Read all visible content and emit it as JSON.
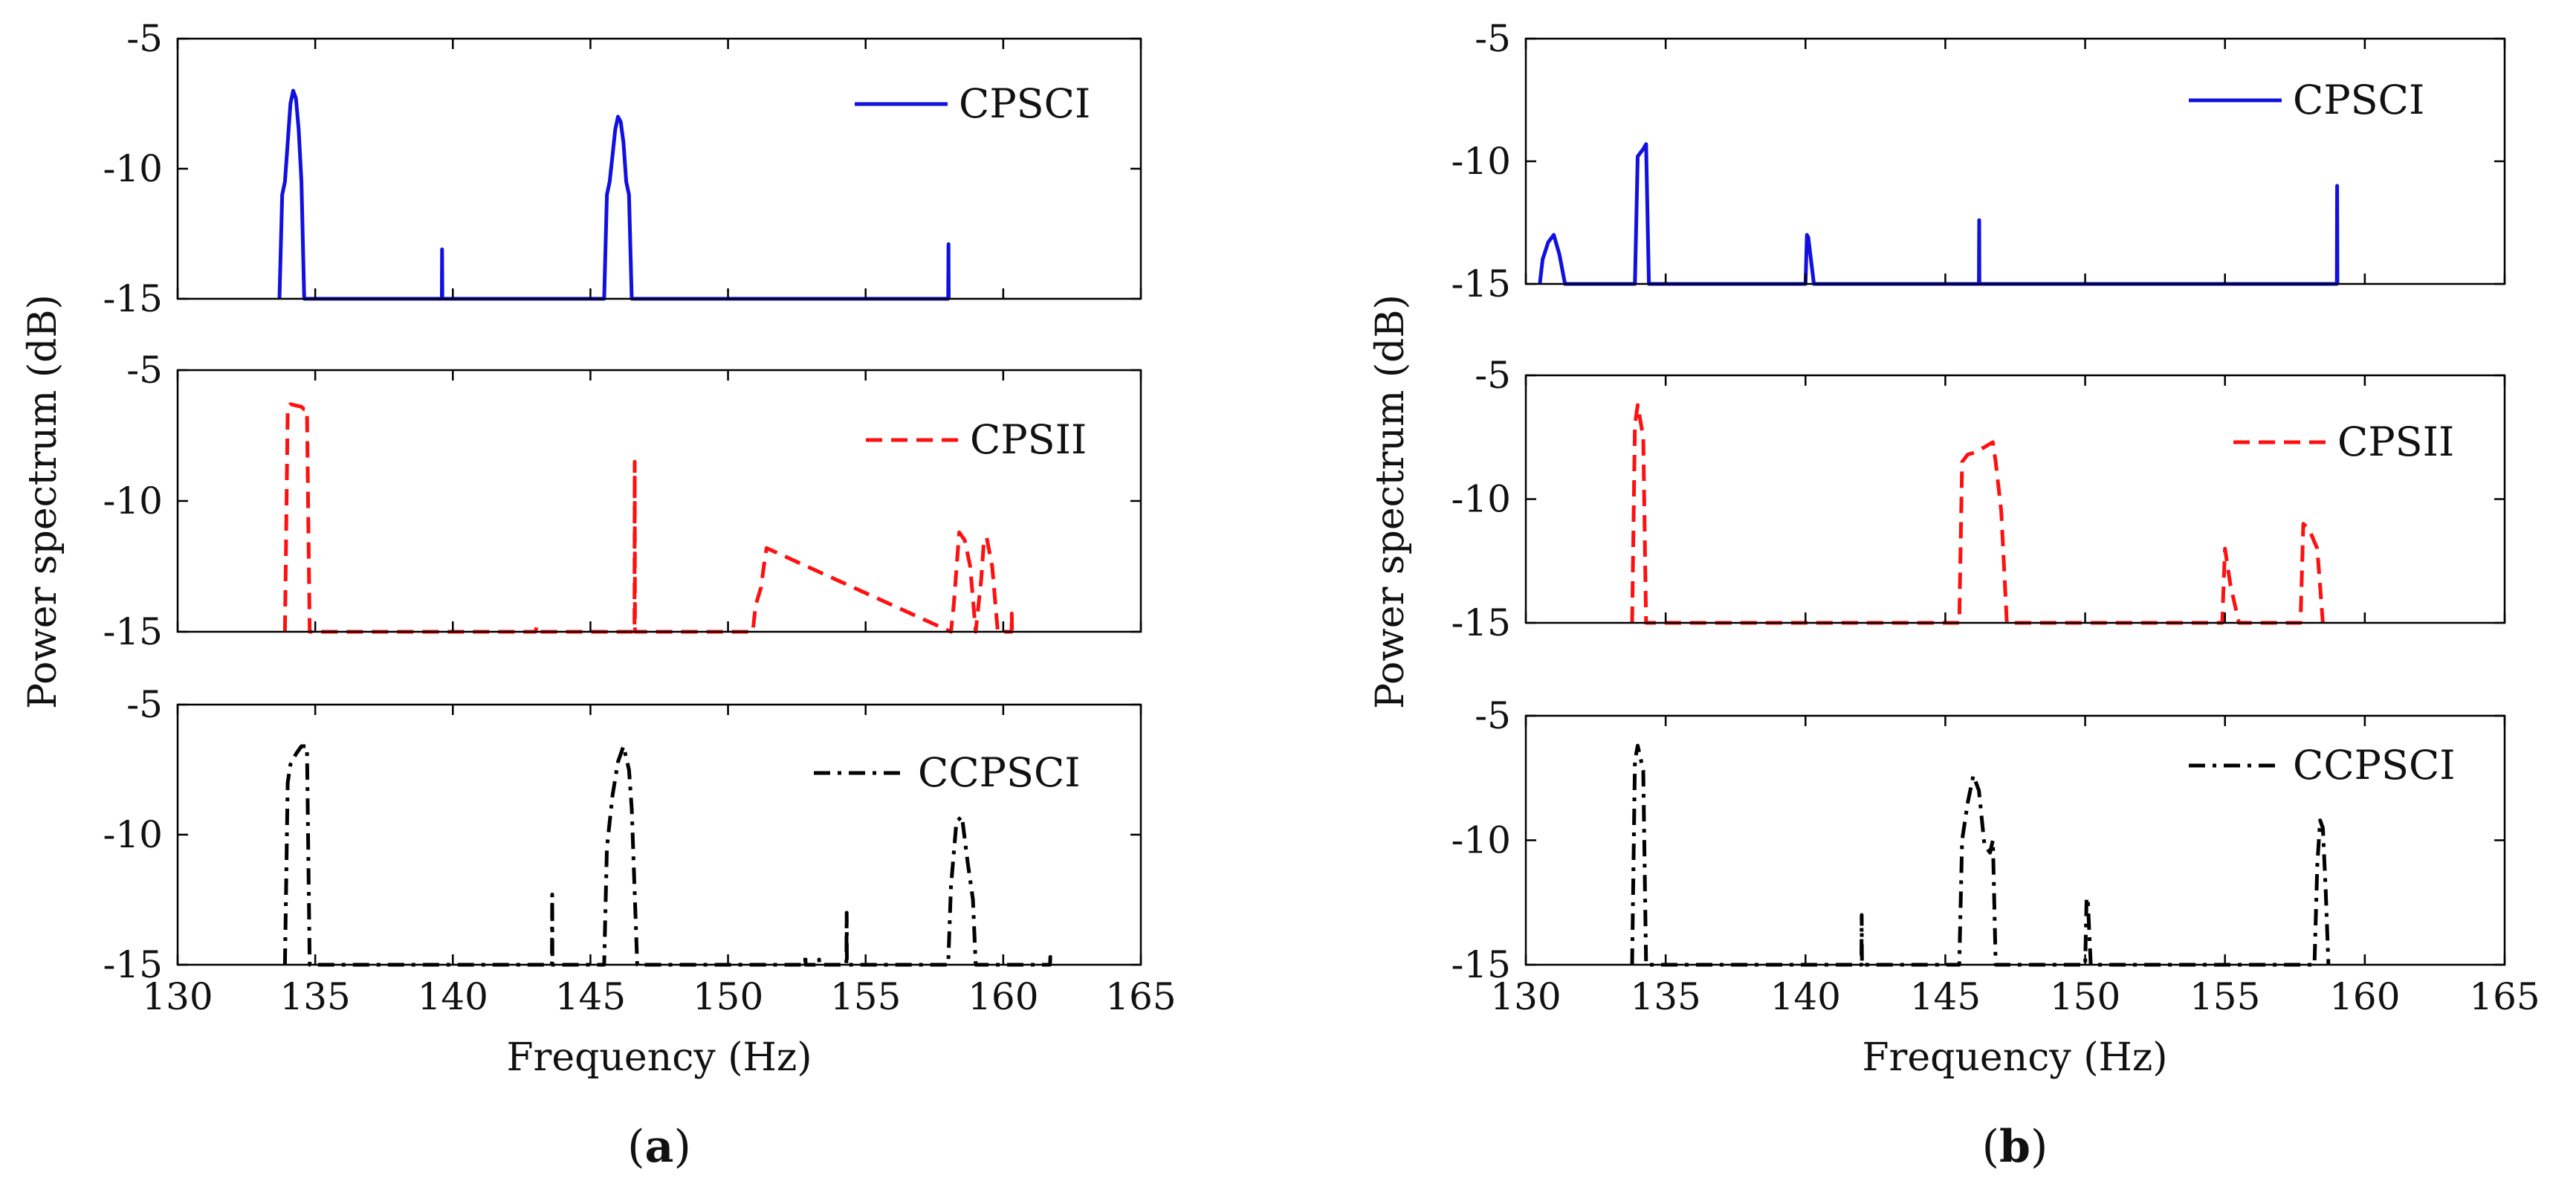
{
  "figure": {
    "panel_labels": [
      "(a)",
      "(b)"
    ],
    "xlabel": "Frequency (Hz)",
    "ylabel": "Power spectrum (dB)",
    "colors": {
      "CPSCI": "#1010e0",
      "CPSII": "#ff1010",
      "CCPSCI": "#000000"
    }
  },
  "chart_data": [
    {
      "type": "line",
      "panel": "(a)",
      "xlabel": "Frequency (Hz)",
      "ylabel": "Power spectrum (dB)",
      "xlim": [
        130,
        165
      ],
      "x_ticks": [
        130,
        135,
        140,
        145,
        150,
        155,
        160,
        165
      ],
      "ylim": [
        -15,
        -5
      ],
      "y_ticks": [
        -5,
        -10,
        -15
      ],
      "subplots": [
        {
          "series": [
            {
              "name": "CPSCI",
              "style": "solid",
              "color": "#1010e0",
              "x": [
                133.7,
                133.8,
                133.9,
                134.0,
                134.1,
                134.2,
                134.3,
                134.4,
                134.5,
                134.6,
                139.6,
                139.61,
                139.62,
                145.5,
                145.6,
                145.7,
                145.8,
                145.9,
                146.0,
                146.1,
                146.2,
                146.3,
                146.4,
                146.5,
                158.0,
                158.01,
                158.02
              ],
              "y": [
                -15,
                -11,
                -10.5,
                -9,
                -7.5,
                -7,
                -7.3,
                -8.5,
                -10.5,
                -15,
                -15,
                -13.1,
                -15,
                -15,
                -11,
                -10.5,
                -9.5,
                -8.5,
                -8,
                -8.2,
                -9,
                -10.5,
                -11,
                -15,
                -15,
                -12.9,
                -15
              ]
            }
          ]
        },
        {
          "series": [
            {
              "name": "CPSII",
              "style": "dashed",
              "color": "#ff1010",
              "x": [
                133.9,
                134.0,
                134.1,
                134.5,
                134.6,
                134.7,
                134.8,
                143.0,
                143.05,
                143.1,
                146.6,
                146.61,
                146.62,
                150.9,
                151.0,
                151.2,
                151.3,
                151.4,
                158.1,
                158.2,
                158.4,
                158.6,
                158.8,
                159.0,
                159.2,
                159.3,
                159.4,
                159.6,
                159.8,
                160.3,
                160.31,
                160.32
              ],
              "y": [
                -15,
                -6.5,
                -6.3,
                -6.4,
                -6.5,
                -6.5,
                -15,
                -15,
                -14.8,
                -15,
                -15,
                -8.5,
                -15,
                -15,
                -14,
                -13.3,
                -12.5,
                -11.8,
                -15,
                -14,
                -11.2,
                -11.5,
                -12.5,
                -15,
                -13,
                -11.5,
                -11.4,
                -12.5,
                -15,
                -15,
                -14.3,
                -15
              ]
            }
          ]
        },
        {
          "series": [
            {
              "name": "CCPSCI",
              "style": "dashdot",
              "color": "#000000",
              "x": [
                133.9,
                134.0,
                134.1,
                134.3,
                134.5,
                134.7,
                134.8,
                143.6,
                143.61,
                143.62,
                145.5,
                145.6,
                145.8,
                146.0,
                146.2,
                146.4,
                146.5,
                146.7,
                152.8,
                152.81,
                152.82,
                153.3,
                153.31,
                153.32,
                154.3,
                154.31,
                154.32,
                158.0,
                158.1,
                158.3,
                158.5,
                158.7,
                158.9,
                159.0,
                161.7,
                161.71,
                161.72
              ],
              "y": [
                -15,
                -8,
                -7.3,
                -6.9,
                -6.6,
                -6.6,
                -15,
                -15,
                -12.3,
                -15,
                -15,
                -10.5,
                -8.5,
                -7.2,
                -6.6,
                -7.5,
                -9,
                -15,
                -15,
                -14.6,
                -15,
                -15,
                -14.8,
                -15,
                -15,
                -13,
                -15,
                -15,
                -12,
                -9.5,
                -9.3,
                -11,
                -12.5,
                -15,
                -15,
                -14.7,
                -15
              ]
            }
          ]
        }
      ]
    },
    {
      "type": "line",
      "panel": "(b)",
      "xlabel": "Frequency (Hz)",
      "ylabel": "Power spectrum (dB)",
      "xlim": [
        130,
        165
      ],
      "x_ticks": [
        130,
        135,
        140,
        145,
        150,
        155,
        160,
        165
      ],
      "ylim": [
        -15,
        -5
      ],
      "y_ticks": [
        -5,
        -10,
        -15
      ],
      "subplots": [
        {
          "series": [
            {
              "name": "CPSCI",
              "style": "solid",
              "color": "#1010e0",
              "x": [
                130.5,
                130.6,
                130.8,
                131.0,
                131.2,
                131.4,
                133.9,
                134.0,
                134.2,
                134.3,
                134.4,
                140.0,
                140.05,
                140.1,
                140.3,
                146.2,
                146.21,
                146.22,
                159.0,
                159.01,
                159.02
              ],
              "y": [
                -15,
                -14,
                -13.3,
                -13,
                -13.8,
                -15,
                -15,
                -9.8,
                -9.5,
                -9.3,
                -15,
                -15,
                -13,
                -13.1,
                -15,
                -15,
                -12.4,
                -15,
                -15,
                -11,
                -15
              ]
            }
          ]
        },
        {
          "series": [
            {
              "name": "CPSII",
              "style": "dashed",
              "color": "#ff1010",
              "x": [
                133.8,
                133.9,
                134.0,
                134.2,
                134.3,
                145.5,
                145.6,
                145.8,
                146.1,
                146.4,
                146.7,
                146.8,
                147.0,
                147.2,
                154.9,
                155.0,
                155.2,
                155.5,
                157.7,
                157.8,
                158.0,
                158.3,
                158.5
              ],
              "y": [
                -15,
                -7,
                -6.2,
                -7.5,
                -15,
                -15,
                -8.5,
                -8.2,
                -8.1,
                -7.9,
                -7.7,
                -8.5,
                -10.5,
                -15,
                -15,
                -12,
                -13.5,
                -15,
                -15,
                -11,
                -11.2,
                -12,
                -15
              ]
            }
          ]
        },
        {
          "series": [
            {
              "name": "CCPSCI",
              "style": "dashdot",
              "color": "#000000",
              "x": [
                133.8,
                133.9,
                134.0,
                134.2,
                134.3,
                142.0,
                142.01,
                142.02,
                145.5,
                145.6,
                145.8,
                146.0,
                146.2,
                146.4,
                146.6,
                146.7,
                146.8,
                150.0,
                150.05,
                150.1,
                150.2,
                158.2,
                158.3,
                158.4,
                158.5,
                158.6,
                158.7
              ],
              "y": [
                -15,
                -6.8,
                -6.2,
                -7.2,
                -15,
                -15,
                -13,
                -15,
                -15,
                -10,
                -8.5,
                -7.4,
                -8,
                -10.2,
                -10.5,
                -10,
                -15,
                -15,
                -12.3,
                -12.5,
                -15,
                -15,
                -11,
                -9.2,
                -9.5,
                -12,
                -15
              ]
            }
          ]
        }
      ]
    }
  ]
}
